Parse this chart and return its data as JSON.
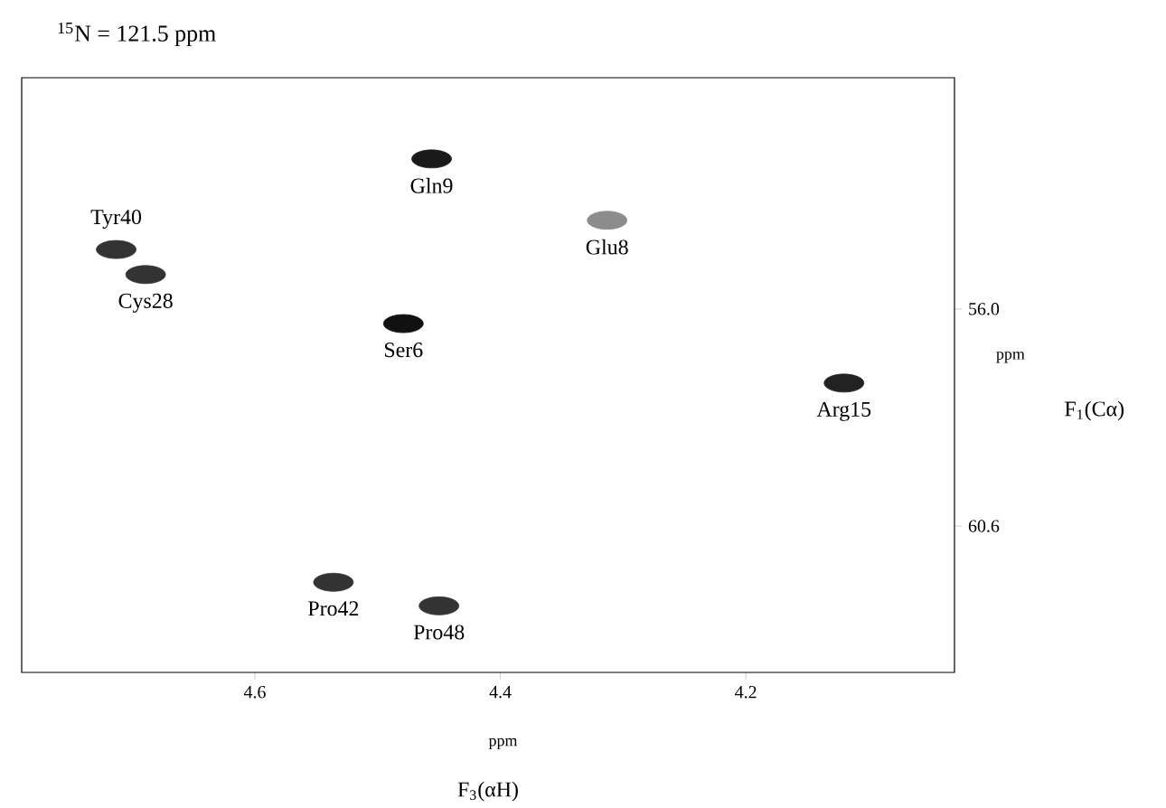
{
  "chart_data": {
    "type": "scatter",
    "title": "$^{15}$N = 121.5 ppm",
    "xlabel": "F$_{3}$(αH)",
    "ylabel": "F$_{1}$(Cα)",
    "x": [
      4.456,
      4.313,
      4.713,
      4.689,
      4.479,
      4.12,
      4.536,
      4.45
    ],
    "values": [
      52.82,
      54.12,
      54.74,
      55.27,
      56.31,
      57.57,
      61.79,
      62.29
    ],
    "colors": [
      "#1a1a1a",
      "#8c8c8c",
      "#333333",
      "#333333",
      "#111111",
      "#222222",
      "#333333",
      "#333333"
    ],
    "marker": "circle",
    "xlim": [
      4.79,
      4.03
    ],
    "ylim": [
      63.7,
      51.1
    ],
    "xticks": [
      4.6,
      4.4,
      4.2
    ],
    "yticks": [
      {
        "value": 56,
        "label": "56.0"
      },
      {
        "value": 60.6,
        "label": "60.6"
      }
    ],
    "annotations": [
      "ppm",
      "ppm",
      {
        "text": "Gln9",
        "x": 4.456,
        "y": 52.82
      },
      {
        "text": "Glu8",
        "x": 4.313,
        "y": 54.12
      },
      {
        "text": "Tyr40",
        "x": 4.713,
        "y": 54.74
      },
      {
        "text": "Cys28",
        "x": 4.689,
        "y": 55.27
      },
      {
        "text": "Ser6",
        "x": 4.479,
        "y": 56.31
      },
      {
        "text": "Arg15",
        "x": 4.12,
        "y": 57.57
      },
      {
        "text": "Pro42",
        "x": 4.536,
        "y": 61.79
      },
      {
        "text": "Pro48",
        "x": 4.45,
        "y": 62.29
      }
    ]
  }
}
